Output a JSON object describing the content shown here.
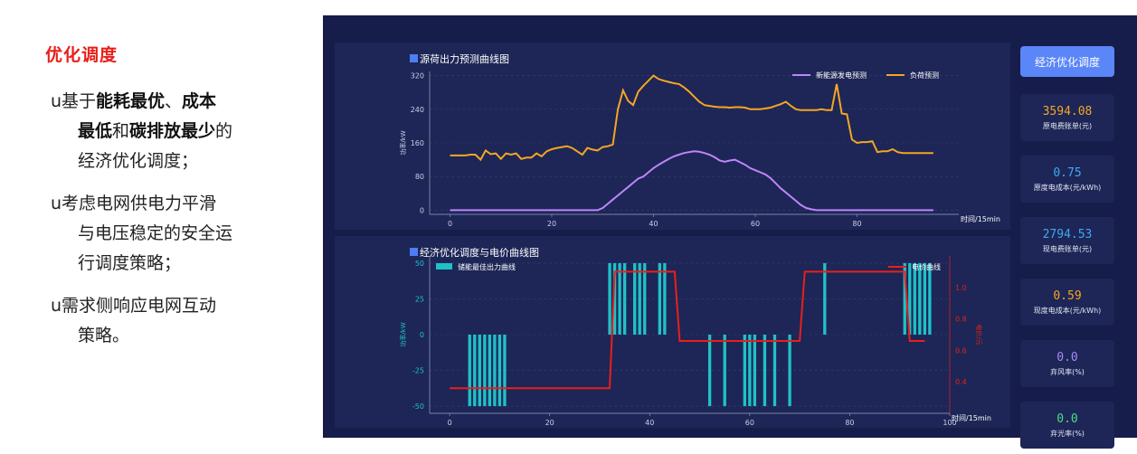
{
  "slide": {
    "title": "优化调度",
    "bullets": [
      {
        "mark": "u",
        "lines": [
          [
            {
              "t": "基于"
            },
            {
              "t": "能耗最优",
              "b": true
            },
            {
              "t": "、"
            },
            {
              "t": "成本",
              "b": true
            }
          ],
          [
            {
              "t": "最低",
              "b": true
            },
            {
              "t": "和"
            },
            {
              "t": "碳排放最少",
              "b": true
            },
            {
              "t": "的"
            }
          ],
          [
            {
              "t": "经济优化调度；"
            }
          ]
        ]
      },
      {
        "mark": "u",
        "lines": [
          [
            {
              "t": "考虑电网供电力平滑"
            }
          ],
          [
            {
              "t": "与电压稳定的安全运"
            }
          ],
          [
            {
              "t": "行调度策略；"
            }
          ]
        ]
      },
      {
        "mark": "u",
        "lines": [
          [
            {
              "t": "需求侧响应电网互动"
            }
          ],
          [
            {
              "t": "策略。"
            }
          ]
        ]
      }
    ]
  },
  "sidebar": {
    "button_label": "经济优化调度",
    "metrics": [
      {
        "value": "3594.08",
        "label": "原电费账单(元)",
        "color": "#f5a623"
      },
      {
        "value": "0.75",
        "label": "原度电成本(元/kWh)",
        "color": "#3fa9f5"
      },
      {
        "value": "2794.53",
        "label": "现电费账单(元)",
        "color": "#3fa9f5"
      },
      {
        "value": "0.59",
        "label": "现度电成本(元/kWh)",
        "color": "#f5a623"
      },
      {
        "value": "0.0",
        "label": "弃风率(%)",
        "color": "#a78bfa"
      },
      {
        "value": "0.0",
        "label": "弃光率(%)",
        "color": "#4ade80"
      }
    ]
  },
  "chart_data": [
    {
      "type": "line",
      "title": "源荷出力预测曲线图",
      "ylabel": "功率/kW",
      "xlabel": "时间/15min",
      "xlim": [
        -4,
        100
      ],
      "ylim": [
        -10,
        330
      ],
      "x_ticks": [
        0,
        20,
        40,
        60,
        80
      ],
      "y_ticks": [
        0,
        80,
        160,
        240,
        320
      ],
      "grid": true,
      "legend_position": "top-right",
      "series": [
        {
          "name": "新能源发电预测",
          "color": "#c084fc",
          "values": [
            0,
            0,
            0,
            0,
            0,
            0,
            0,
            0,
            0,
            0,
            0,
            0,
            0,
            0,
            0,
            0,
            0,
            0,
            0,
            0,
            0,
            0,
            0,
            0,
            0,
            0,
            0,
            0,
            0,
            0,
            5,
            15,
            25,
            35,
            45,
            55,
            65,
            75,
            80,
            90,
            100,
            108,
            115,
            122,
            128,
            132,
            136,
            138,
            140,
            139,
            136,
            132,
            126,
            118,
            115,
            118,
            120,
            114,
            108,
            100,
            95,
            90,
            85,
            76,
            64,
            52,
            42,
            32,
            22,
            12,
            5,
            2,
            0,
            0,
            0,
            0,
            0,
            0,
            0,
            0,
            0,
            0,
            0,
            0,
            0,
            0,
            0,
            0,
            0,
            0,
            0,
            0,
            0,
            0,
            0,
            0
          ]
        },
        {
          "name": "负荷预测",
          "color": "#f5a623",
          "values": [
            130,
            130,
            130,
            130,
            132,
            132,
            120,
            142,
            133,
            135,
            122,
            135,
            132,
            135,
            122,
            125,
            125,
            135,
            128,
            140,
            145,
            148,
            150,
            152,
            148,
            140,
            132,
            148,
            144,
            142,
            150,
            152,
            156,
            240,
            285,
            260,
            250,
            282,
            296,
            308,
            320,
            312,
            308,
            305,
            302,
            300,
            292,
            282,
            270,
            258,
            250,
            248,
            246,
            245,
            245,
            244,
            245,
            245,
            244,
            240,
            240,
            240,
            242,
            244,
            248,
            252,
            258,
            248,
            240,
            238,
            238,
            238,
            238,
            240,
            238,
            238,
            300,
            230,
            228,
            168,
            160,
            162,
            162,
            164,
            138,
            140,
            140,
            145,
            138,
            136,
            136,
            136,
            136,
            136,
            136,
            136
          ]
        }
      ]
    },
    {
      "type": "bar",
      "title": "经济优化调度与电价曲线图",
      "ylabel": "功率/kW",
      "y2label": "电价/元",
      "xlabel": "时间/15min",
      "xlim": [
        -4,
        100
      ],
      "ylim": [
        -55,
        55
      ],
      "y2lim": [
        0.2,
        1.2
      ],
      "x_ticks": [
        0,
        20,
        40,
        60,
        80,
        100
      ],
      "y_ticks": [
        -50,
        -25,
        0,
        25,
        50
      ],
      "y2_ticks": [
        0.4,
        0.6,
        0.8,
        1.0
      ],
      "grid": true,
      "series": [
        {
          "name": "储能最佳出力曲线",
          "color": "#1fc1c8",
          "values": [
            0,
            0,
            0,
            0,
            -50,
            -50,
            -50,
            -50,
            -50,
            -50,
            -50,
            -50,
            0,
            0,
            0,
            0,
            0,
            0,
            0,
            0,
            0,
            0,
            0,
            0,
            0,
            0,
            0,
            0,
            0,
            0,
            0,
            0,
            50,
            50,
            50,
            50,
            0,
            50,
            50,
            50,
            0,
            0,
            50,
            50,
            0,
            0,
            0,
            0,
            0,
            0,
            0,
            0,
            -50,
            0,
            0,
            -50,
            0,
            0,
            0,
            -50,
            -50,
            -50,
            0,
            -50,
            0,
            -50,
            0,
            0,
            -50,
            0,
            0,
            0,
            0,
            0,
            0,
            50,
            0,
            0,
            0,
            0,
            0,
            0,
            0,
            0,
            0,
            0,
            0,
            0,
            0,
            0,
            0,
            50,
            50,
            50,
            50,
            50,
            50,
            0,
            0,
            0
          ]
        },
        {
          "name": "电价曲线",
          "color": "#e8201a",
          "axis": "right",
          "values": [
            0.36,
            0.36,
            0.36,
            0.36,
            0.36,
            0.36,
            0.36,
            0.36,
            0.36,
            0.36,
            0.36,
            0.36,
            0.36,
            0.36,
            0.36,
            0.36,
            0.36,
            0.36,
            0.36,
            0.36,
            0.36,
            0.36,
            0.36,
            0.36,
            0.36,
            0.36,
            0.36,
            0.36,
            0.36,
            0.36,
            0.36,
            0.36,
            0.36,
            1.1,
            1.1,
            1.1,
            1.1,
            1.1,
            1.1,
            1.1,
            1.1,
            1.1,
            1.1,
            1.1,
            1.1,
            1.1,
            0.66,
            0.66,
            0.66,
            0.66,
            0.66,
            0.66,
            0.66,
            0.66,
            0.66,
            0.66,
            0.66,
            0.66,
            0.66,
            0.66,
            0.66,
            0.66,
            0.66,
            0.66,
            0.66,
            0.66,
            0.66,
            0.66,
            0.66,
            0.66,
            0.66,
            1.1,
            1.1,
            1.1,
            1.1,
            1.1,
            1.1,
            1.1,
            1.1,
            1.1,
            1.1,
            1.1,
            1.1,
            1.1,
            1.1,
            1.1,
            1.1,
            1.1,
            1.1,
            1.1,
            1.1,
            1.1,
            0.66,
            0.66,
            0.66,
            0.66
          ]
        }
      ]
    }
  ]
}
